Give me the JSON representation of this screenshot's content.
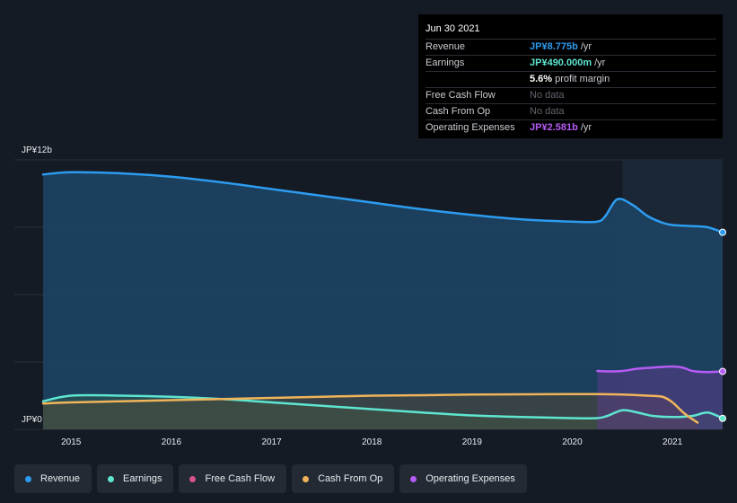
{
  "tooltip": {
    "date": "Jun 30 2021",
    "rows": [
      {
        "label": "Revenue",
        "value": "JP¥8.775b",
        "suffix": "/yr",
        "color": "#2d9cf0"
      },
      {
        "label": "Earnings",
        "value": "JP¥490.000m",
        "suffix": "/yr",
        "color": "#5ee6d0"
      },
      {
        "label": "",
        "value": "5.6%",
        "suffix": "profit margin",
        "color": "#ffffff"
      },
      {
        "label": "Free Cash Flow",
        "value": "No data",
        "suffix": "",
        "color": "#5f656d"
      },
      {
        "label": "Cash From Op",
        "value": "No data",
        "suffix": "",
        "color": "#5f656d"
      },
      {
        "label": "Operating Expenses",
        "value": "JP¥2.581b",
        "suffix": "/yr",
        "color": "#b65cf6"
      }
    ]
  },
  "legend": [
    {
      "label": "Revenue",
      "color": "#2d9cf0"
    },
    {
      "label": "Earnings",
      "color": "#5ee6d0"
    },
    {
      "label": "Free Cash Flow",
      "color": "#d9538a"
    },
    {
      "label": "Cash From Op",
      "color": "#f0b45a"
    },
    {
      "label": "Operating Expenses",
      "color": "#b65cf6"
    }
  ],
  "chart_data": {
    "type": "area",
    "y_unit": "JP¥ billions",
    "ylim": [
      0,
      12
    ],
    "y_tick_labels": [
      {
        "value": 12,
        "label": "JP¥12b"
      },
      {
        "value": 0,
        "label": "JP¥0"
      }
    ],
    "x_range": [
      2014.72,
      2021.5
    ],
    "x_ticks": [
      2015,
      2016,
      2017,
      2018,
      2019,
      2020,
      2021
    ],
    "highlight_start": 2020.5,
    "series": [
      {
        "name": "Revenue",
        "color": "#2d9cf0",
        "x": [
          2014.72,
          2015.0,
          2015.5,
          2016.0,
          2016.5,
          2017.0,
          2017.5,
          2018.0,
          2018.5,
          2019.0,
          2019.5,
          2020.0,
          2020.25,
          2020.33,
          2020.45,
          2020.6,
          2020.75,
          2020.9,
          2021.0,
          2021.2,
          2021.35,
          2021.5
        ],
        "y": [
          11.35,
          11.45,
          11.4,
          11.25,
          11.0,
          10.7,
          10.4,
          10.1,
          9.8,
          9.55,
          9.35,
          9.25,
          9.25,
          9.5,
          10.25,
          10.0,
          9.5,
          9.2,
          9.1,
          9.05,
          9.0,
          8.775
        ]
      },
      {
        "name": "Earnings",
        "color": "#5ee6d0",
        "x": [
          2014.72,
          2015.0,
          2015.5,
          2016.0,
          2016.5,
          2017.0,
          2017.5,
          2018.0,
          2018.5,
          2019.0,
          2019.5,
          2020.0,
          2020.25,
          2020.35,
          2020.5,
          2020.65,
          2020.8,
          2021.0,
          2021.2,
          2021.35,
          2021.5
        ],
        "y": [
          1.25,
          1.5,
          1.5,
          1.45,
          1.35,
          1.2,
          1.05,
          0.9,
          0.75,
          0.62,
          0.55,
          0.5,
          0.5,
          0.6,
          0.85,
          0.75,
          0.6,
          0.55,
          0.6,
          0.75,
          0.49
        ]
      },
      {
        "name": "Cash From Op",
        "color": "#f0b45a",
        "x": [
          2014.72,
          2015.0,
          2015.5,
          2016.0,
          2016.5,
          2017.0,
          2017.5,
          2018.0,
          2018.5,
          2019.0,
          2019.5,
          2020.0,
          2020.25,
          2020.5,
          2020.75,
          2020.9,
          2021.0,
          2021.12,
          2021.25
        ],
        "y": [
          1.15,
          1.2,
          1.25,
          1.3,
          1.35,
          1.4,
          1.45,
          1.5,
          1.52,
          1.55,
          1.56,
          1.57,
          1.57,
          1.55,
          1.5,
          1.45,
          1.2,
          0.7,
          0.3
        ]
      },
      {
        "name": "Operating Expenses",
        "color": "#b65cf6",
        "x": [
          2020.25,
          2020.35,
          2020.5,
          2020.65,
          2020.8,
          2021.0,
          2021.1,
          2021.2,
          2021.35,
          2021.5
        ],
        "y": [
          2.6,
          2.58,
          2.6,
          2.7,
          2.75,
          2.8,
          2.75,
          2.6,
          2.55,
          2.581
        ]
      }
    ]
  }
}
